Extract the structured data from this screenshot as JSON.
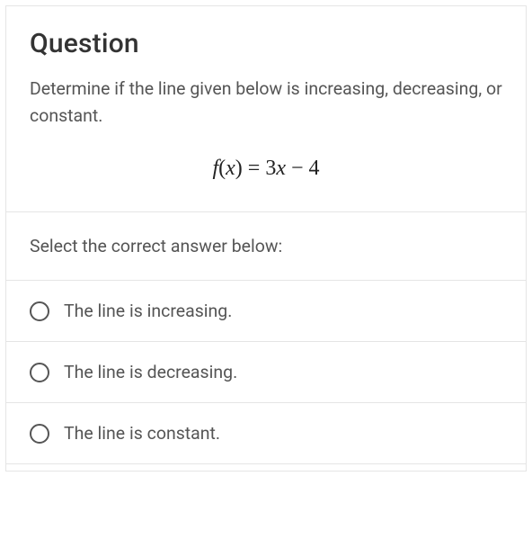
{
  "title": "Question",
  "prompt": "Determine if the line given below is increasing, decreasing, or constant.",
  "equation": {
    "lhs_f": "f",
    "lhs_open": "(",
    "lhs_var": "x",
    "lhs_close": ")",
    "eq": " = ",
    "rhs_coef": "3",
    "rhs_var": "x",
    "rhs_op": " − ",
    "rhs_const": "4"
  },
  "instruction": "Select the correct answer below:",
  "options": [
    {
      "label": "The line is increasing."
    },
    {
      "label": "The line is decreasing."
    },
    {
      "label": "The line is constant."
    }
  ],
  "colors": {
    "border": "#e5e5e5",
    "title": "#333333",
    "text": "#555555",
    "radio_border": "#555555",
    "background": "#ffffff"
  },
  "typography": {
    "title_fontsize": 30,
    "body_fontsize": 19.5,
    "equation_fontsize": 24,
    "equation_family": "Times New Roman"
  }
}
